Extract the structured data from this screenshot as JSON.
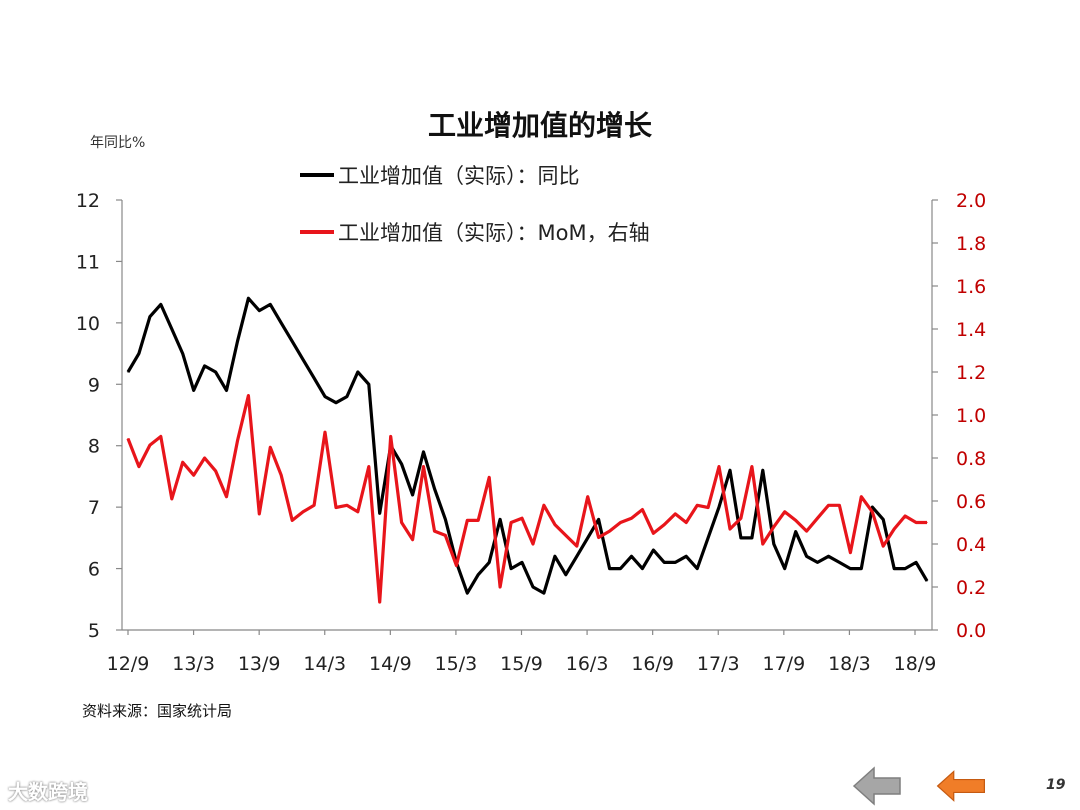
{
  "title": "工业增加值的增长",
  "y_left_unit": "年同比%",
  "source": "资料来源：国家统计局",
  "watermark": "大数跨境",
  "page_number": "19",
  "colors": {
    "black_series": "#000000",
    "red_series": "#e8151b",
    "right_axis": "#c00000",
    "nav_prev": "#a6a6a6",
    "nav_back": "#f07d28"
  },
  "icons": {
    "prev": "left-arrow-icon",
    "back": "left-arrow-icon"
  },
  "chart_data": {
    "type": "line",
    "title": "工业增加值的增长",
    "x_tick_labels": [
      "12/9",
      "13/3",
      "13/9",
      "14/3",
      "14/9",
      "15/3",
      "15/9",
      "16/3",
      "16/9",
      "17/3",
      "17/9",
      "18/3",
      "18/9"
    ],
    "y_left": {
      "label": "年同比%",
      "range": [
        5,
        12
      ],
      "ticks": [
        5,
        6,
        7,
        8,
        9,
        10,
        11,
        12
      ]
    },
    "y_right": {
      "range": [
        0.0,
        2.0
      ],
      "ticks": [
        "0.0",
        "0.2",
        "0.4",
        "0.6",
        "0.8",
        "1.0",
        "1.2",
        "1.4",
        "1.6",
        "1.8",
        "2.0"
      ]
    },
    "legend": {
      "placement": "top-center"
    },
    "series": [
      {
        "name": "工业增加值（实际）：同比",
        "axis": "left",
        "color": "#000000",
        "values": [
          9.2,
          9.5,
          10.1,
          10.3,
          9.9,
          9.5,
          8.9,
          9.3,
          9.2,
          8.9,
          9.7,
          10.4,
          10.2,
          10.3,
          10.0,
          9.7,
          9.4,
          9.1,
          8.8,
          8.7,
          8.8,
          9.2,
          9.0,
          6.9,
          8.0,
          7.7,
          7.2,
          7.9,
          7.3,
          6.8,
          6.1,
          5.6,
          5.9,
          6.1,
          6.8,
          6.0,
          6.1,
          5.7,
          5.6,
          6.2,
          5.9,
          6.2,
          6.5,
          6.8,
          6.0,
          6.0,
          6.2,
          6.0,
          6.3,
          6.1,
          6.1,
          6.2,
          6.0,
          6.5,
          7.0,
          7.6,
          6.5,
          6.5,
          7.6,
          6.4,
          6.0,
          6.6,
          6.2,
          6.1,
          6.2,
          6.1,
          6.0,
          6.0,
          7.0,
          6.8,
          6.0,
          6.0,
          6.1,
          5.8
        ]
      },
      {
        "name": "工业增加值（实际）：MoM，右轴",
        "axis": "right",
        "color": "#e8151b",
        "values": [
          0.89,
          0.76,
          0.86,
          0.9,
          0.61,
          0.78,
          0.72,
          0.8,
          0.74,
          0.62,
          0.88,
          1.09,
          0.54,
          0.85,
          0.72,
          0.51,
          0.55,
          0.58,
          0.92,
          0.57,
          0.58,
          0.55,
          0.76,
          0.13,
          0.9,
          0.5,
          0.42,
          0.76,
          0.46,
          0.44,
          0.3,
          0.51,
          0.51,
          0.71,
          0.2,
          0.5,
          0.52,
          0.4,
          0.58,
          0.49,
          0.44,
          0.39,
          0.62,
          0.43,
          0.46,
          0.5,
          0.52,
          0.56,
          0.45,
          0.49,
          0.54,
          0.5,
          0.58,
          0.57,
          0.76,
          0.47,
          0.52,
          0.76,
          0.4,
          0.48,
          0.55,
          0.51,
          0.46,
          0.52,
          0.58,
          0.58,
          0.36,
          0.62,
          0.55,
          0.39,
          0.47,
          0.53,
          0.5,
          0.5
        ]
      }
    ]
  }
}
